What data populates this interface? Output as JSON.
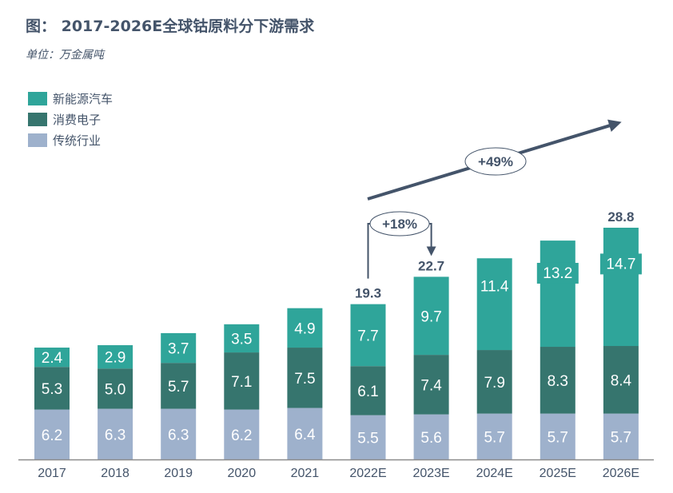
{
  "chart_data": {
    "type": "bar",
    "stacked": true,
    "title": "图： 2017-2026E全球钴原料分下游需求",
    "subtitle": "单位：万金属吨",
    "xlabel": "",
    "ylabel": "",
    "ylim": [
      0,
      28.8
    ],
    "grid": false,
    "legend_position": "top-left",
    "categories": [
      "2017",
      "2018",
      "2019",
      "2020",
      "2021",
      "2022E",
      "2023E",
      "2024E",
      "2025E",
      "2026E"
    ],
    "series": [
      {
        "name": "传统行业",
        "color": "#9eb1cc",
        "values": [
          6.2,
          6.3,
          6.3,
          6.2,
          6.4,
          5.5,
          5.6,
          5.7,
          5.7,
          5.7
        ],
        "labels": [
          "6.2",
          "6.3",
          "6.3",
          "6.2",
          "6.4",
          "5.5",
          "5.6",
          "5.7",
          "5.7",
          "5.7"
        ]
      },
      {
        "name": "消费电子",
        "color": "#36756e",
        "values": [
          5.3,
          5.0,
          5.7,
          7.1,
          7.5,
          6.1,
          7.4,
          7.9,
          8.3,
          8.4
        ],
        "labels": [
          "5.3",
          "5.0",
          "5.7",
          "7.1",
          "7.5",
          "6.1",
          "7.4",
          "7.9",
          "8.3",
          "8.4"
        ]
      },
      {
        "name": "新能源汽车",
        "color": "#2fa59a",
        "values": [
          2.4,
          2.9,
          3.7,
          3.5,
          4.9,
          7.7,
          9.7,
          11.4,
          13.2,
          14.7
        ],
        "labels": [
          "2.4",
          "2.9",
          "3.7",
          "3.5",
          "4.9",
          "7.7",
          "9.7",
          "11.4",
          "13.2",
          "14.7"
        ]
      }
    ],
    "legend_order": [
      "新能源汽车",
      "消费电子",
      "传统行业"
    ],
    "totals": [
      {
        "category": "2022E",
        "label": "19.3"
      },
      {
        "category": "2023E",
        "label": "22.7"
      },
      {
        "category": "2026E",
        "label": "28.8"
      }
    ],
    "annotations": [
      {
        "text": "+18%",
        "from": "2022E",
        "to": "2023E"
      },
      {
        "text": "+49%",
        "from": "2022E",
        "to": "2026E"
      }
    ]
  },
  "colors": {
    "text": "#44546a",
    "axis": "#8c8c8c",
    "annotation": "#44546a"
  }
}
